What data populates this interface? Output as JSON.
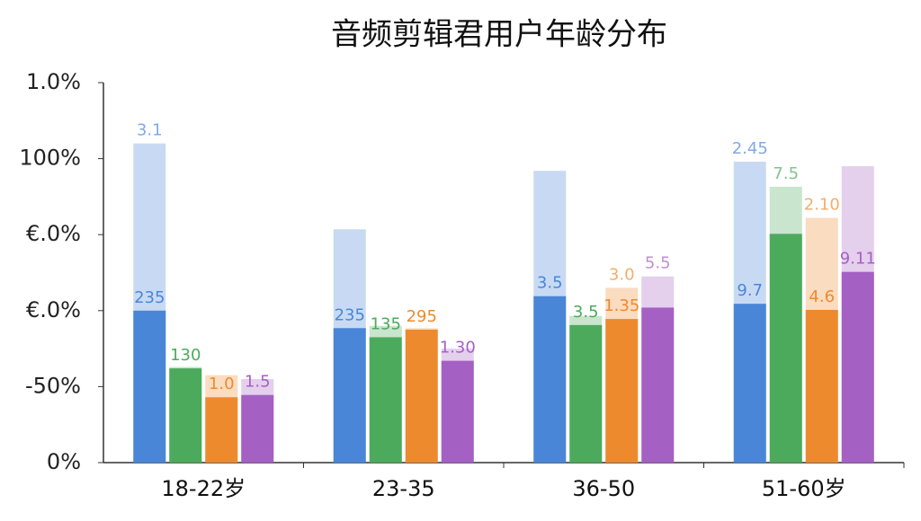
{
  "chart_data": {
    "type": "bar",
    "title": "音频剪辑君用户年龄分布",
    "categories": [
      "18-22岁",
      "23-35",
      "36-50",
      "51-60岁"
    ],
    "ylim": [
      0,
      5
    ],
    "yticks": [
      {
        "value": 0,
        "label": "0%"
      },
      {
        "value": 1,
        "label": "-50%"
      },
      {
        "value": 2,
        "label": "€.0%"
      },
      {
        "value": 3,
        "label": "€.0%"
      },
      {
        "value": 4,
        "label": "100%"
      },
      {
        "value": 5,
        "label": "1.0%"
      }
    ],
    "series": [
      {
        "color": "#4a86d8",
        "values": [
          2.0,
          1.77,
          2.19,
          2.09
        ],
        "labels": [
          "235",
          "235",
          "3.5",
          "9.7"
        ],
        "ghost": {
          "values": [
            4.2,
            3.07,
            3.84,
            3.96
          ],
          "labels": [
            "3.1",
            null,
            null,
            "2.45"
          ]
        }
      },
      {
        "color": "#4caa5c",
        "values": [
          1.24,
          1.65,
          1.81,
          3.01
        ],
        "labels": [
          "130",
          "135",
          "3.5",
          null
        ],
        "ghost": {
          "values": [
            1.26,
            1.8,
            1.93,
            3.63
          ],
          "labels": [
            null,
            null,
            null,
            "7.5"
          ]
        }
      },
      {
        "color": "#ee8a2e",
        "values": [
          0.86,
          1.75,
          1.89,
          2.01
        ],
        "labels": [
          "1.0",
          "295",
          "1.35",
          "4.6"
        ],
        "ghost": {
          "values": [
            1.15,
            1.77,
            2.3,
            3.22
          ],
          "labels": [
            null,
            null,
            "3.0",
            "2.10"
          ]
        }
      },
      {
        "color": "#a560c4",
        "values": [
          0.89,
          1.34,
          2.04,
          2.51
        ],
        "labels": [
          "1.5",
          "1.30",
          null,
          "9.11"
        ],
        "ghost": {
          "values": [
            1.1,
            1.5,
            2.45,
            3.9
          ],
          "labels": [
            null,
            null,
            "5.5",
            null
          ]
        }
      }
    ]
  }
}
